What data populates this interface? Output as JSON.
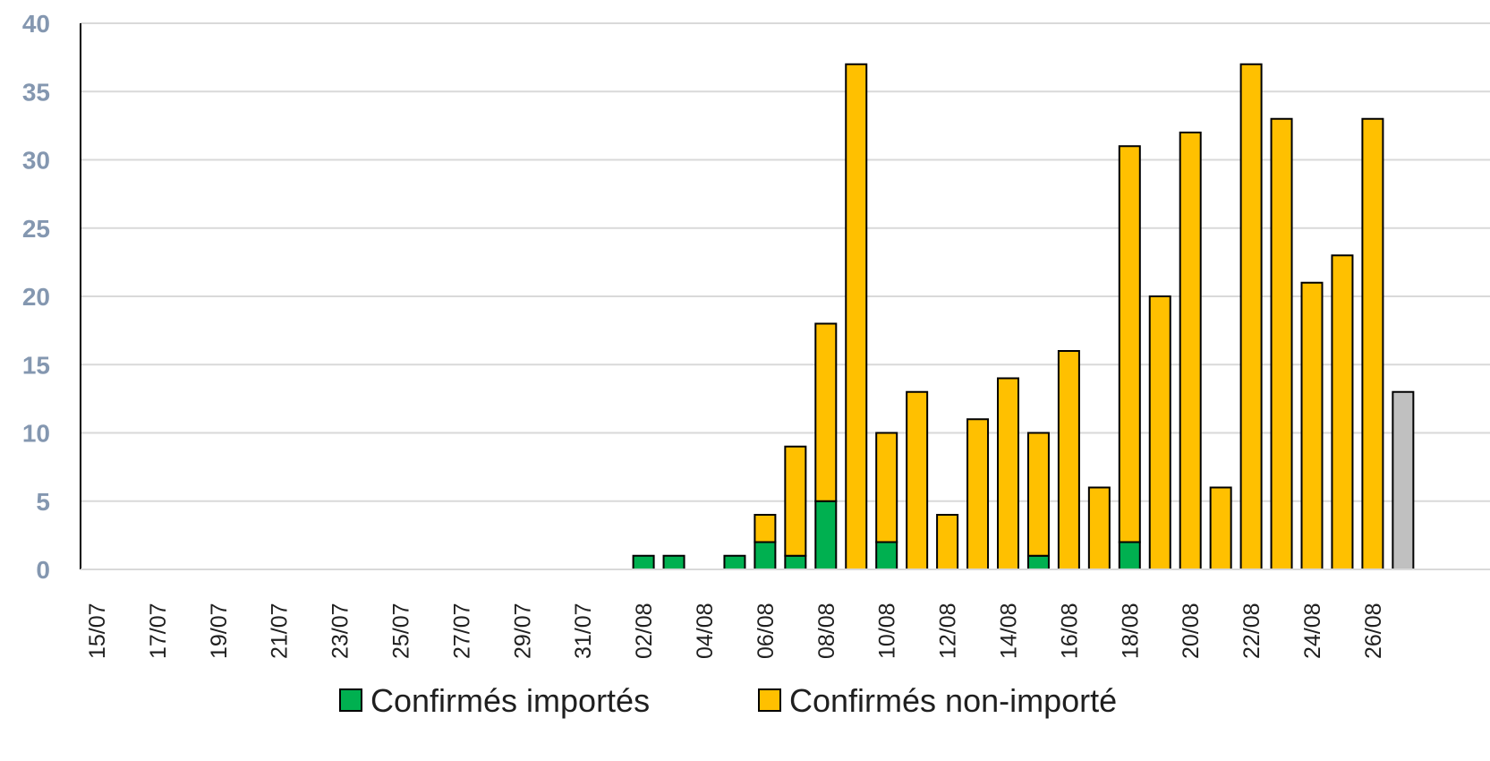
{
  "chart_data": {
    "type": "bar",
    "stacked": true,
    "title": "",
    "xlabel": "",
    "ylabel": "",
    "ylim": [
      0,
      40
    ],
    "yticks": [
      0,
      5,
      10,
      15,
      20,
      25,
      30,
      35,
      40
    ],
    "grid": true,
    "legend_position": "bottom",
    "categories": [
      "15/07",
      "16/07",
      "17/07",
      "18/07",
      "19/07",
      "20/07",
      "21/07",
      "22/07",
      "23/07",
      "24/07",
      "25/07",
      "26/07",
      "27/07",
      "28/07",
      "29/07",
      "30/07",
      "31/07",
      "01/08",
      "02/08",
      "03/08",
      "04/08",
      "05/08",
      "06/08",
      "07/08",
      "08/08",
      "09/08",
      "10/08",
      "11/08",
      "12/08",
      "13/08",
      "14/08",
      "15/08",
      "16/08",
      "17/08",
      "18/08",
      "19/08",
      "20/08",
      "21/08",
      "22/08",
      "23/08",
      "24/08",
      "25/08",
      "26/08",
      "27/08"
    ],
    "x_tick_labels": [
      "15/07",
      "17/07",
      "19/07",
      "21/07",
      "23/07",
      "25/07",
      "27/07",
      "29/07",
      "31/07",
      "02/08",
      "04/08",
      "06/08",
      "08/08",
      "10/08",
      "12/08",
      "14/08",
      "16/08",
      "18/08",
      "20/08",
      "22/08",
      "24/08",
      "26/08"
    ],
    "series": [
      {
        "name": "Confirmés importés",
        "color": "#00b050",
        "values": [
          0,
          0,
          0,
          0,
          0,
          0,
          0,
          0,
          0,
          0,
          0,
          0,
          0,
          0,
          0,
          0,
          0,
          0,
          1,
          1,
          0,
          1,
          2,
          1,
          5,
          0,
          2,
          0,
          0,
          0,
          0,
          1,
          0,
          0,
          2,
          0,
          0,
          0,
          0,
          0,
          0,
          0,
          0,
          0
        ]
      },
      {
        "name": "Confirmés non-importé",
        "color": "#ffc000",
        "values": [
          0,
          0,
          0,
          0,
          0,
          0,
          0,
          0,
          0,
          0,
          0,
          0,
          0,
          0,
          0,
          0,
          0,
          0,
          0,
          0,
          0,
          0,
          2,
          8,
          13,
          37,
          8,
          13,
          4,
          11,
          14,
          9,
          16,
          6,
          29,
          20,
          32,
          6,
          37,
          33,
          21,
          23,
          33,
          0
        ]
      },
      {
        "name": "",
        "color": "#c0c0c0",
        "values": [
          0,
          0,
          0,
          0,
          0,
          0,
          0,
          0,
          0,
          0,
          0,
          0,
          0,
          0,
          0,
          0,
          0,
          0,
          0,
          0,
          0,
          0,
          0,
          0,
          0,
          0,
          0,
          0,
          0,
          0,
          0,
          0,
          0,
          0,
          0,
          0,
          0,
          0,
          0,
          0,
          0,
          0,
          0,
          13
        ]
      }
    ],
    "gridline_color": "#d9d9d9",
    "axis_text_color": "#8497b0"
  }
}
